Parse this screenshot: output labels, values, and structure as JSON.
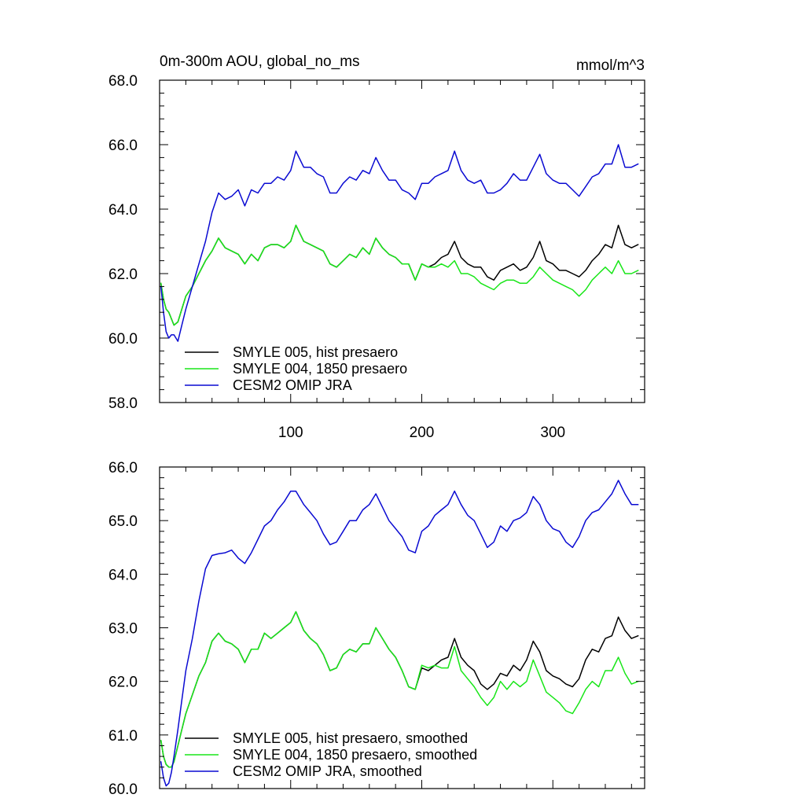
{
  "colors": {
    "smyle005": "#000000",
    "smyle004": "#19e619",
    "cesm2": "#0a0ad2",
    "axis": "#000000"
  },
  "chart_data": [
    {
      "type": "line",
      "title": "0m-300m AOU, global_no_ms",
      "units_label": "mmol/m^3",
      "xlim": [
        0,
        370
      ],
      "ylim": [
        58.0,
        68.0
      ],
      "xticks": [
        100,
        200,
        300
      ],
      "xtick_labels": [
        "100",
        "200",
        "300"
      ],
      "yticks": [
        58.0,
        60.0,
        62.0,
        64.0,
        66.0,
        68.0
      ],
      "ytick_labels": [
        "58.0",
        "60.0",
        "62.0",
        "64.0",
        "66.0",
        "68.0"
      ],
      "legend_position": "bottom-left",
      "x": [
        1,
        3,
        5,
        7,
        9,
        11,
        14,
        17,
        20,
        25,
        30,
        35,
        40,
        45,
        50,
        55,
        60,
        65,
        70,
        75,
        80,
        85,
        90,
        95,
        100,
        104,
        110,
        115,
        120,
        125,
        130,
        135,
        140,
        145,
        150,
        155,
        160,
        165,
        170,
        175,
        180,
        185,
        190,
        195,
        200,
        205,
        210,
        215,
        220,
        225,
        230,
        235,
        240,
        245,
        250,
        255,
        260,
        265,
        270,
        275,
        280,
        285,
        290,
        295,
        300,
        305,
        310,
        315,
        320,
        325,
        330,
        335,
        340,
        345,
        350,
        355,
        360,
        365
      ],
      "series": [
        {
          "name": "SMYLE 005, hist presaero",
          "color_key": "smyle005",
          "y": [
            61.7,
            61.2,
            60.9,
            60.8,
            60.6,
            60.4,
            60.5,
            60.9,
            61.3,
            61.6,
            62.0,
            62.4,
            62.7,
            63.1,
            62.8,
            62.7,
            62.6,
            62.3,
            62.6,
            62.4,
            62.8,
            62.9,
            62.9,
            62.8,
            63.0,
            63.5,
            63.0,
            62.9,
            62.8,
            62.7,
            62.3,
            62.2,
            62.4,
            62.6,
            62.5,
            62.8,
            62.6,
            63.1,
            62.8,
            62.6,
            62.5,
            62.3,
            62.3,
            61.8,
            62.3,
            62.2,
            62.3,
            62.5,
            62.6,
            63.0,
            62.5,
            62.3,
            62.2,
            62.2,
            61.9,
            61.8,
            62.1,
            62.2,
            62.3,
            62.1,
            62.2,
            62.5,
            63.0,
            62.4,
            62.3,
            62.1,
            62.1,
            62.0,
            61.9,
            62.1,
            62.4,
            62.6,
            62.9,
            62.8,
            63.5,
            62.9,
            62.8,
            62.9
          ]
        },
        {
          "name": "SMYLE 004, 1850 presaero",
          "color_key": "smyle004",
          "y": [
            61.7,
            61.2,
            60.9,
            60.8,
            60.6,
            60.4,
            60.5,
            60.9,
            61.3,
            61.6,
            62.0,
            62.4,
            62.7,
            63.1,
            62.8,
            62.7,
            62.6,
            62.3,
            62.6,
            62.4,
            62.8,
            62.9,
            62.9,
            62.8,
            63.0,
            63.5,
            63.0,
            62.9,
            62.8,
            62.7,
            62.3,
            62.2,
            62.4,
            62.6,
            62.5,
            62.8,
            62.6,
            63.1,
            62.8,
            62.6,
            62.5,
            62.3,
            62.3,
            61.8,
            62.3,
            62.2,
            62.2,
            62.3,
            62.2,
            62.4,
            62.0,
            62.0,
            61.9,
            61.7,
            61.6,
            61.5,
            61.7,
            61.8,
            61.8,
            61.7,
            61.7,
            61.9,
            62.2,
            62.0,
            61.8,
            61.7,
            61.6,
            61.5,
            61.3,
            61.5,
            61.8,
            62.0,
            62.2,
            62.0,
            62.4,
            62.0,
            62.0,
            62.1
          ]
        },
        {
          "name": "CESM2 OMIP JRA",
          "color_key": "cesm2",
          "y": [
            61.6,
            60.8,
            60.2,
            60.0,
            60.1,
            60.1,
            59.9,
            60.4,
            60.9,
            61.6,
            62.3,
            63.0,
            63.9,
            64.5,
            64.3,
            64.4,
            64.6,
            64.1,
            64.6,
            64.5,
            64.8,
            64.8,
            65.0,
            64.9,
            65.2,
            65.8,
            65.3,
            65.3,
            65.1,
            65.0,
            64.5,
            64.5,
            64.8,
            65.0,
            64.9,
            65.2,
            65.1,
            65.6,
            65.2,
            64.9,
            64.9,
            64.6,
            64.5,
            64.3,
            64.8,
            64.8,
            65.0,
            65.1,
            65.2,
            65.8,
            65.2,
            64.9,
            64.8,
            64.9,
            64.5,
            64.5,
            64.6,
            64.8,
            65.1,
            64.9,
            64.9,
            65.3,
            65.7,
            65.1,
            64.9,
            64.8,
            64.8,
            64.6,
            64.4,
            64.7,
            65.0,
            65.1,
            65.4,
            65.4,
            66.0,
            65.3,
            65.3,
            65.4
          ]
        }
      ]
    },
    {
      "type": "line",
      "title": "",
      "xlim": [
        0,
        370
      ],
      "ylim": [
        60.0,
        66.0
      ],
      "xticks": [
        100,
        200,
        300
      ],
      "xtick_labels": [],
      "yticks": [
        60.0,
        61.0,
        62.0,
        63.0,
        64.0,
        65.0,
        66.0
      ],
      "ytick_labels": [
        "60.0",
        "61.0",
        "62.0",
        "63.0",
        "64.0",
        "65.0",
        "66.0"
      ],
      "legend_position": "bottom-left",
      "x": [
        1,
        3,
        5,
        7,
        9,
        11,
        14,
        17,
        20,
        25,
        30,
        35,
        40,
        45,
        50,
        55,
        60,
        65,
        70,
        75,
        80,
        85,
        90,
        95,
        100,
        104,
        110,
        115,
        120,
        125,
        130,
        135,
        140,
        145,
        150,
        155,
        160,
        165,
        170,
        175,
        180,
        185,
        190,
        195,
        200,
        205,
        210,
        215,
        220,
        225,
        230,
        235,
        240,
        245,
        250,
        255,
        260,
        265,
        270,
        275,
        280,
        285,
        290,
        295,
        300,
        305,
        310,
        315,
        320,
        325,
        330,
        335,
        340,
        345,
        350,
        355,
        360,
        365
      ],
      "series": [
        {
          "name": "SMYLE 005, hist presaero, smoothed",
          "color_key": "smyle005",
          "y": [
            60.9,
            60.6,
            60.45,
            60.4,
            60.4,
            60.5,
            60.8,
            61.1,
            61.4,
            61.75,
            62.1,
            62.35,
            62.75,
            62.9,
            62.75,
            62.7,
            62.6,
            62.35,
            62.6,
            62.6,
            62.9,
            62.8,
            62.9,
            63.0,
            63.1,
            63.3,
            62.95,
            62.8,
            62.7,
            62.5,
            62.2,
            62.25,
            62.5,
            62.6,
            62.55,
            62.7,
            62.7,
            63.0,
            62.8,
            62.6,
            62.45,
            62.2,
            61.9,
            61.85,
            62.25,
            62.2,
            62.3,
            62.4,
            62.45,
            62.8,
            62.45,
            62.3,
            62.2,
            61.95,
            61.85,
            61.95,
            62.15,
            62.1,
            62.3,
            62.2,
            62.4,
            62.75,
            62.55,
            62.2,
            62.1,
            62.05,
            61.95,
            61.9,
            62.05,
            62.4,
            62.6,
            62.55,
            62.8,
            62.85,
            63.2,
            62.95,
            62.8,
            62.85
          ]
        },
        {
          "name": "SMYLE 004, 1850 presaero, smoothed",
          "color_key": "smyle004",
          "y": [
            60.9,
            60.6,
            60.45,
            60.4,
            60.4,
            60.5,
            60.8,
            61.1,
            61.4,
            61.75,
            62.1,
            62.35,
            62.75,
            62.9,
            62.75,
            62.7,
            62.6,
            62.35,
            62.6,
            62.6,
            62.9,
            62.8,
            62.9,
            63.0,
            63.1,
            63.3,
            62.95,
            62.8,
            62.7,
            62.5,
            62.2,
            62.25,
            62.5,
            62.6,
            62.55,
            62.7,
            62.7,
            63.0,
            62.8,
            62.6,
            62.45,
            62.2,
            61.9,
            61.85,
            62.3,
            62.25,
            62.3,
            62.25,
            62.25,
            62.65,
            62.2,
            62.05,
            61.9,
            61.7,
            61.55,
            61.7,
            62.0,
            61.85,
            62.0,
            61.9,
            62.0,
            62.4,
            62.1,
            61.8,
            61.7,
            61.6,
            61.45,
            61.4,
            61.6,
            61.85,
            62.0,
            61.9,
            62.2,
            62.2,
            62.45,
            62.15,
            61.95,
            62.0
          ]
        },
        {
          "name": "CESM2 OMIP JRA, smoothed",
          "color_key": "cesm2",
          "y": [
            60.5,
            60.2,
            60.05,
            60.1,
            60.3,
            60.6,
            61.1,
            61.65,
            62.2,
            62.8,
            63.5,
            64.1,
            64.35,
            64.38,
            64.4,
            64.45,
            64.3,
            64.2,
            64.4,
            64.65,
            64.9,
            65.0,
            65.2,
            65.35,
            65.55,
            65.55,
            65.3,
            65.15,
            65.0,
            64.75,
            64.55,
            64.6,
            64.8,
            65.0,
            65.0,
            65.2,
            65.3,
            65.5,
            65.25,
            65.0,
            64.85,
            64.7,
            64.45,
            64.4,
            64.8,
            64.9,
            65.1,
            65.2,
            65.3,
            65.55,
            65.3,
            65.1,
            65.0,
            64.75,
            64.5,
            64.6,
            64.9,
            64.8,
            65.0,
            65.05,
            65.15,
            65.45,
            65.3,
            65.0,
            64.85,
            64.8,
            64.6,
            64.5,
            64.7,
            65.0,
            65.15,
            65.2,
            65.35,
            65.5,
            65.75,
            65.5,
            65.3,
            65.3
          ]
        }
      ]
    }
  ]
}
